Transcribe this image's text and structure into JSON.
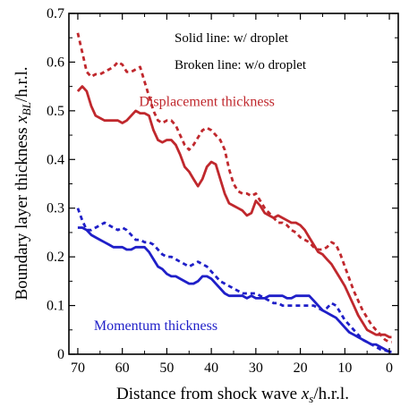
{
  "chart_data": {
    "type": "line",
    "xlabel": {
      "prefix": "Distance from shock wave ",
      "var": "x",
      "sub": "s",
      "suffix": "/h.r.l."
    },
    "ylabel": {
      "prefix": "Boundary layer thickness ",
      "var": "x",
      "sub": "BL",
      "suffix": "/h.r.l."
    },
    "xlim": [
      72,
      -2
    ],
    "ylim": [
      0,
      0.7
    ],
    "xticks": [
      70,
      60,
      50,
      40,
      30,
      20,
      10,
      0
    ],
    "xtick_labels": [
      "70",
      "60",
      "50",
      "40",
      "30",
      "20",
      "10",
      "0"
    ],
    "yticks": [
      0,
      0.1,
      0.2,
      0.3,
      0.4,
      0.5,
      0.6,
      0.7
    ],
    "ytick_labels": [
      "0",
      "0.1",
      "0.2",
      "0.3",
      "0.4",
      "0.5",
      "0.6",
      "0.7"
    ],
    "grid": false,
    "notes": [
      "Solid line: w/ droplet",
      "Broken line: w/o droplet"
    ],
    "series_labels": [
      {
        "text": "Displacement thickness",
        "color": "#c0282d",
        "x": 41,
        "y": 0.51
      },
      {
        "text": "Momentum thickness",
        "color": "#1f1fc8",
        "x": 52.5,
        "y": 0.05
      }
    ],
    "series": [
      {
        "label": "Displacement thickness",
        "style": "solid",
        "color": "#c0282d",
        "x": [
          70,
          69,
          68,
          67,
          66,
          65,
          64,
          63,
          62,
          61,
          60,
          59,
          58,
          57,
          56,
          55,
          54,
          53,
          52,
          51,
          50,
          49,
          48,
          47,
          46,
          45,
          44,
          43,
          42,
          41,
          40,
          39,
          38,
          37,
          36,
          35,
          34,
          33,
          32,
          31,
          30,
          29,
          28,
          27,
          26,
          25,
          24,
          23,
          22,
          21,
          20,
          19,
          18,
          17,
          16,
          15,
          14,
          13,
          12,
          11,
          10,
          9,
          8,
          7,
          6,
          5,
          4,
          3,
          2,
          1,
          0,
          -0.5
        ],
        "y": [
          0.54,
          0.55,
          0.54,
          0.51,
          0.49,
          0.485,
          0.48,
          0.48,
          0.48,
          0.48,
          0.475,
          0.48,
          0.49,
          0.5,
          0.495,
          0.495,
          0.49,
          0.46,
          0.44,
          0.435,
          0.44,
          0.44,
          0.43,
          0.41,
          0.385,
          0.375,
          0.36,
          0.345,
          0.36,
          0.385,
          0.395,
          0.39,
          0.36,
          0.33,
          0.31,
          0.305,
          0.3,
          0.295,
          0.285,
          0.29,
          0.315,
          0.305,
          0.29,
          0.285,
          0.28,
          0.285,
          0.28,
          0.275,
          0.27,
          0.27,
          0.265,
          0.255,
          0.24,
          0.225,
          0.21,
          0.205,
          0.195,
          0.185,
          0.17,
          0.155,
          0.14,
          0.12,
          0.1,
          0.08,
          0.065,
          0.05,
          0.045,
          0.04,
          0.04,
          0.04,
          0.035,
          0.035
        ]
      },
      {
        "label": "Displacement thickness",
        "style": "dashed",
        "color": "#c0282d",
        "x": [
          70,
          69,
          68,
          67,
          66,
          65,
          64,
          63,
          62,
          61,
          60,
          59,
          58,
          57,
          56,
          55,
          54,
          53,
          52,
          51,
          50,
          49,
          48,
          47,
          46,
          45,
          44,
          43,
          42,
          41,
          40,
          39,
          38,
          37,
          36,
          35,
          34,
          33,
          32,
          31,
          30,
          29,
          28,
          27,
          26,
          25,
          24,
          23,
          22,
          21,
          20,
          19,
          18,
          17,
          16,
          15,
          14,
          13,
          12,
          11,
          10,
          9,
          8,
          7,
          6,
          5,
          4,
          3,
          2,
          1,
          0,
          -0.5
        ],
        "y": [
          0.66,
          0.62,
          0.58,
          0.57,
          0.575,
          0.575,
          0.58,
          0.585,
          0.59,
          0.6,
          0.595,
          0.58,
          0.58,
          0.585,
          0.59,
          0.56,
          0.53,
          0.5,
          0.48,
          0.475,
          0.48,
          0.48,
          0.47,
          0.45,
          0.43,
          0.42,
          0.43,
          0.445,
          0.46,
          0.465,
          0.46,
          0.45,
          0.44,
          0.42,
          0.38,
          0.35,
          0.335,
          0.33,
          0.33,
          0.325,
          0.33,
          0.315,
          0.3,
          0.29,
          0.28,
          0.27,
          0.27,
          0.265,
          0.255,
          0.25,
          0.24,
          0.235,
          0.23,
          0.22,
          0.215,
          0.215,
          0.22,
          0.23,
          0.225,
          0.205,
          0.18,
          0.155,
          0.13,
          0.11,
          0.09,
          0.075,
          0.06,
          0.05,
          0.04,
          0.03,
          0.025,
          0.025
        ]
      },
      {
        "label": "Momentum thickness",
        "style": "solid",
        "color": "#1f1fc8",
        "x": [
          70,
          69,
          68,
          67,
          66,
          65,
          64,
          63,
          62,
          61,
          60,
          59,
          58,
          57,
          56,
          55,
          54,
          53,
          52,
          51,
          50,
          49,
          48,
          47,
          46,
          45,
          44,
          43,
          42,
          41,
          40,
          39,
          38,
          37,
          36,
          35,
          34,
          33,
          32,
          31,
          30,
          29,
          28,
          27,
          26,
          25,
          24,
          23,
          22,
          21,
          20,
          19,
          18,
          17,
          16,
          15,
          14,
          13,
          12,
          11,
          10,
          9,
          8,
          7,
          6,
          5,
          4,
          3,
          2,
          1,
          0,
          -0.5
        ],
        "y": [
          0.26,
          0.26,
          0.255,
          0.245,
          0.24,
          0.235,
          0.23,
          0.225,
          0.22,
          0.22,
          0.22,
          0.215,
          0.215,
          0.22,
          0.22,
          0.22,
          0.21,
          0.195,
          0.18,
          0.175,
          0.165,
          0.16,
          0.16,
          0.155,
          0.15,
          0.145,
          0.145,
          0.15,
          0.16,
          0.16,
          0.155,
          0.145,
          0.135,
          0.125,
          0.12,
          0.12,
          0.12,
          0.12,
          0.115,
          0.12,
          0.115,
          0.115,
          0.115,
          0.12,
          0.12,
          0.12,
          0.12,
          0.115,
          0.115,
          0.12,
          0.12,
          0.12,
          0.12,
          0.11,
          0.1,
          0.09,
          0.085,
          0.08,
          0.075,
          0.065,
          0.055,
          0.045,
          0.04,
          0.035,
          0.03,
          0.025,
          0.02,
          0.02,
          0.015,
          0.01,
          0.005,
          0.005
        ]
      },
      {
        "label": "Momentum thickness",
        "style": "dashed",
        "color": "#1f1fc8",
        "x": [
          70,
          69,
          68,
          67,
          66,
          65,
          64,
          63,
          62,
          61,
          60,
          59,
          58,
          57,
          56,
          55,
          54,
          53,
          52,
          51,
          50,
          49,
          48,
          47,
          46,
          45,
          44,
          43,
          42,
          41,
          40,
          39,
          38,
          37,
          36,
          35,
          34,
          33,
          32,
          31,
          30,
          29,
          28,
          27,
          26,
          25,
          24,
          23,
          22,
          21,
          20,
          19,
          18,
          17,
          16,
          15,
          14,
          13,
          12,
          11,
          10,
          9,
          8,
          7,
          6,
          5,
          4,
          3,
          2,
          1,
          0,
          -0.5
        ],
        "y": [
          0.3,
          0.275,
          0.255,
          0.255,
          0.26,
          0.265,
          0.27,
          0.265,
          0.26,
          0.255,
          0.26,
          0.255,
          0.245,
          0.235,
          0.235,
          0.23,
          0.23,
          0.225,
          0.215,
          0.205,
          0.2,
          0.2,
          0.195,
          0.19,
          0.185,
          0.18,
          0.185,
          0.19,
          0.185,
          0.18,
          0.17,
          0.16,
          0.15,
          0.145,
          0.14,
          0.135,
          0.13,
          0.125,
          0.125,
          0.125,
          0.125,
          0.12,
          0.115,
          0.11,
          0.105,
          0.105,
          0.1,
          0.1,
          0.1,
          0.1,
          0.1,
          0.1,
          0.1,
          0.1,
          0.095,
          0.09,
          0.095,
          0.105,
          0.1,
          0.085,
          0.07,
          0.06,
          0.05,
          0.04,
          0.03,
          0.025,
          0.02,
          0.015,
          0.01,
          0.008,
          0.005,
          0.005
        ]
      }
    ]
  }
}
